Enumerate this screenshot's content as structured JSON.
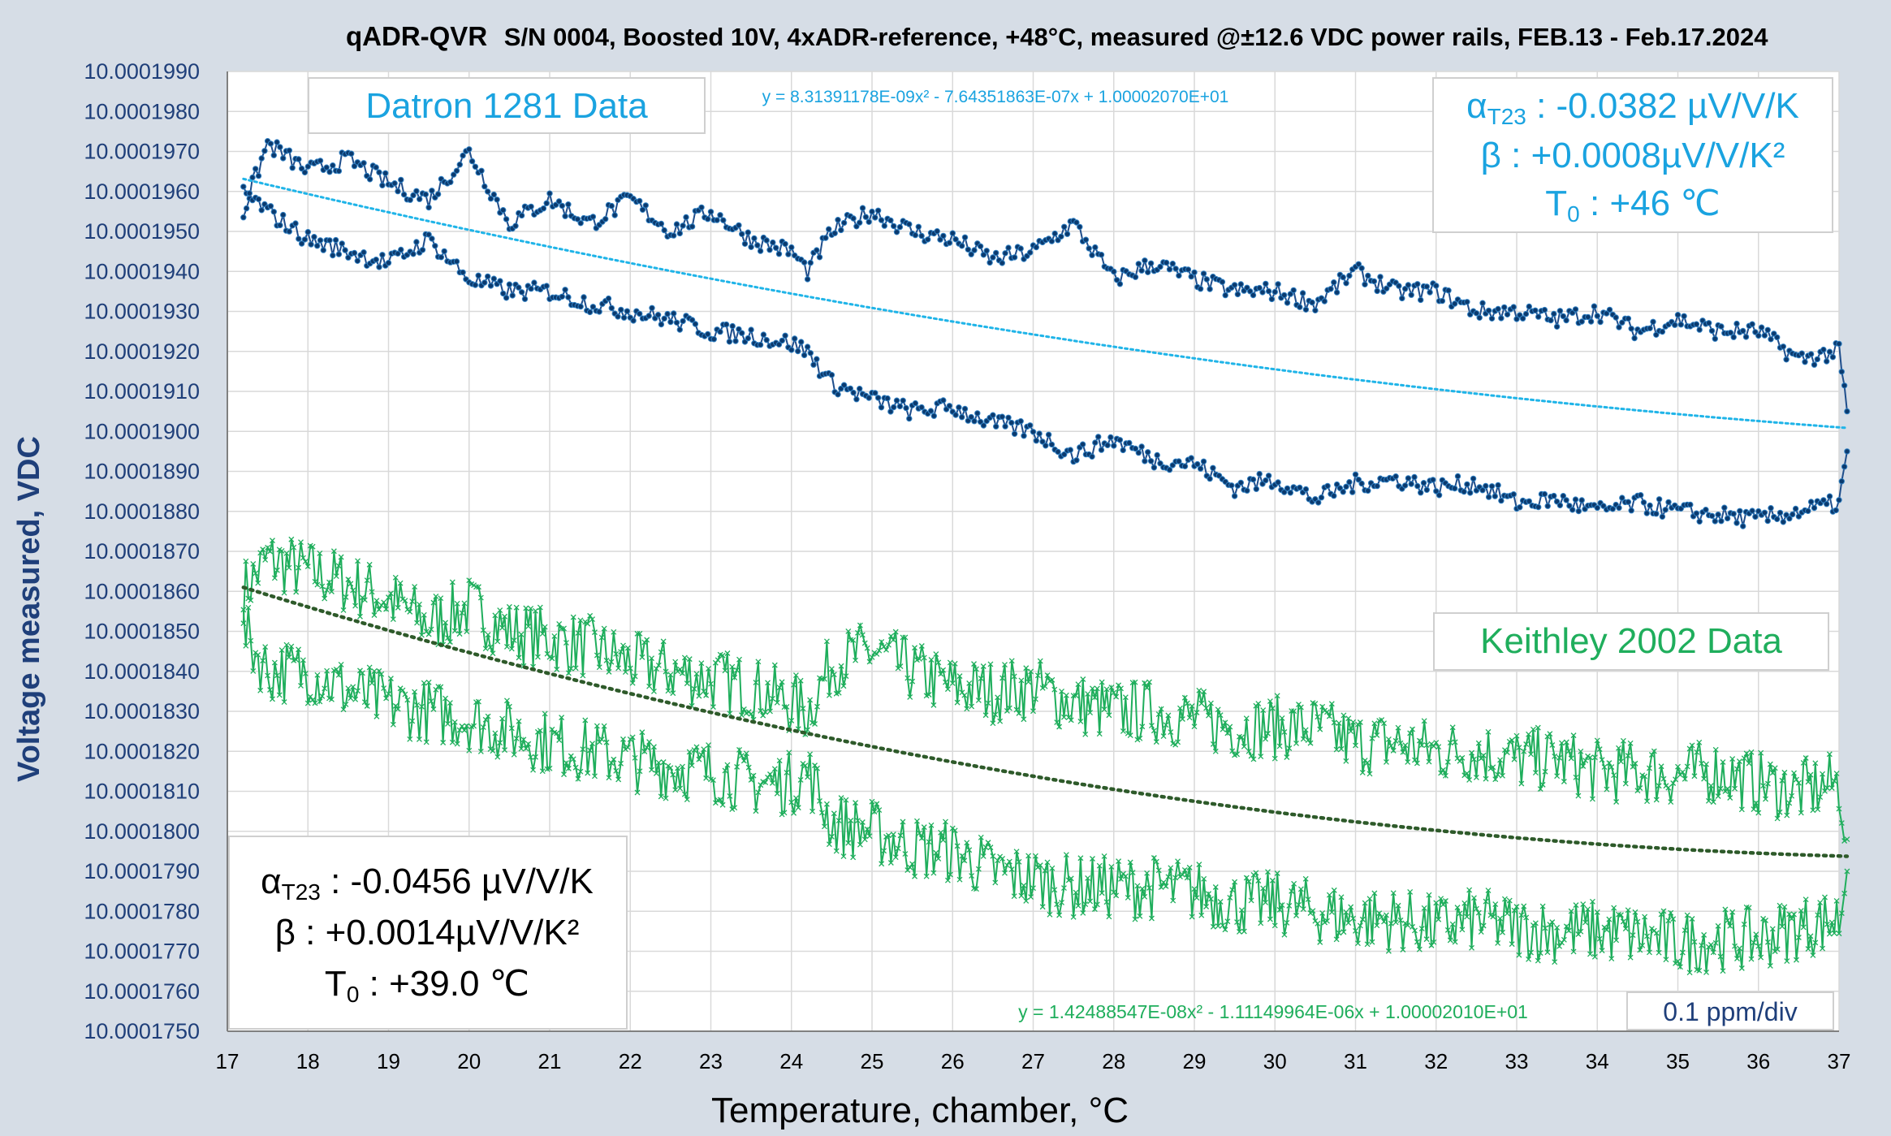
{
  "chart_data": {
    "type": "scatter",
    "title_main": "qADR-QVR",
    "title_rest": "S/N 0004, Boosted 10V, 4xADR-reference, +48°C, measured @±12.6 VDC power rails, FEB.13 - Feb.17.2024",
    "xlabel": "Temperature, chamber, °C",
    "ylabel": "Voltage measured, VDC",
    "xlim": [
      17,
      37
    ],
    "ylim": [
      10.000175,
      10.000199
    ],
    "x_ticks": [
      "17",
      "18",
      "19",
      "20",
      "21",
      "22",
      "23",
      "24",
      "25",
      "26",
      "27",
      "28",
      "29",
      "30",
      "31",
      "32",
      "33",
      "34",
      "35",
      "36",
      "37"
    ],
    "y_ticks": [
      "10.0001750",
      "10.0001760",
      "10.0001770",
      "10.0001780",
      "10.0001790",
      "10.0001800",
      "10.0001810",
      "10.0001820",
      "10.0001830",
      "10.0001840",
      "10.0001850",
      "10.0001860",
      "10.0001870",
      "10.0001880",
      "10.0001890",
      "10.0001900",
      "10.0001910",
      "10.0001920",
      "10.0001930",
      "10.0001940",
      "10.0001950",
      "10.0001960",
      "10.0001970",
      "10.0001980",
      "10.0001990"
    ],
    "grid": true,
    "scale_note": "0.1 ppm/div",
    "colors": {
      "datron": "#1f4e8c",
      "datron_fit": "#1fb4e8",
      "keithley": "#1fae5c",
      "keithley_fit": "#2e5a2a",
      "label_blue": "#1aa3e0",
      "label_green": "#1fae5c",
      "axis_text": "#1f3f7a"
    },
    "series": [
      {
        "name": "Datron 1281 Data",
        "upper_path": [
          [
            17.2,
            10.0001955
          ],
          [
            17.5,
            10.0001972
          ],
          [
            18,
            10.0001965
          ],
          [
            18.5,
            10.0001968
          ],
          [
            19,
            10.0001962
          ],
          [
            19.5,
            10.0001958
          ],
          [
            20,
            10.000197
          ],
          [
            20.5,
            10.0001952
          ],
          [
            21,
            10.0001958
          ],
          [
            21.5,
            10.0001952
          ],
          [
            22,
            10.0001958
          ],
          [
            22.5,
            10.000195
          ],
          [
            23,
            10.0001955
          ],
          [
            23.5,
            10.0001948
          ],
          [
            24,
            10.0001945
          ],
          [
            24.2,
            10.000194
          ],
          [
            24.5,
            10.000195
          ],
          [
            25,
            10.0001955
          ],
          [
            25.5,
            10.000195
          ],
          [
            26,
            10.0001948
          ],
          [
            26.5,
            10.0001943
          ],
          [
            27,
            10.0001945
          ],
          [
            27.5,
            10.0001952
          ],
          [
            28,
            10.0001938
          ],
          [
            28.5,
            10.0001942
          ],
          [
            29,
            10.0001938
          ],
          [
            29.5,
            10.0001935
          ],
          [
            30,
            10.0001935
          ],
          [
            30.5,
            10.0001932
          ],
          [
            31,
            10.000194
          ],
          [
            31.5,
            10.0001935
          ],
          [
            32,
            10.0001935
          ],
          [
            32.5,
            10.000193
          ],
          [
            33,
            10.000193
          ],
          [
            33.5,
            10.0001928
          ],
          [
            34,
            10.000193
          ],
          [
            34.5,
            10.0001925
          ],
          [
            35,
            10.0001928
          ],
          [
            35.5,
            10.0001925
          ],
          [
            36,
            10.0001925
          ],
          [
            36.5,
            10.0001918
          ],
          [
            37,
            10.000192
          ],
          [
            37.1,
            10.0001905
          ]
        ],
        "lower_path": [
          [
            17.2,
            10.000196
          ],
          [
            17.5,
            10.0001955
          ],
          [
            18,
            10.0001948
          ],
          [
            18.5,
            10.0001945
          ],
          [
            19,
            10.0001942
          ],
          [
            19.5,
            10.0001948
          ],
          [
            20,
            10.0001938
          ],
          [
            20.5,
            10.0001935
          ],
          [
            21,
            10.0001935
          ],
          [
            21.5,
            10.0001932
          ],
          [
            22,
            10.000193
          ],
          [
            22.5,
            10.0001928
          ],
          [
            23,
            10.0001925
          ],
          [
            23.5,
            10.0001924
          ],
          [
            24,
            10.0001922
          ],
          [
            24.2,
            10.000192
          ],
          [
            24.5,
            10.0001912
          ],
          [
            25,
            10.0001908
          ],
          [
            25.5,
            10.0001905
          ],
          [
            26,
            10.0001906
          ],
          [
            26.5,
            10.0001902
          ],
          [
            27,
            10.00019
          ],
          [
            27.5,
            10.0001894
          ],
          [
            28,
            10.0001898
          ],
          [
            28.5,
            10.0001893
          ],
          [
            29,
            10.0001892
          ],
          [
            29.5,
            10.0001886
          ],
          [
            30,
            10.0001888
          ],
          [
            30.5,
            10.0001883
          ],
          [
            31,
            10.0001887
          ],
          [
            31.5,
            10.0001888
          ],
          [
            32,
            10.0001886
          ],
          [
            32.5,
            10.0001887
          ],
          [
            33,
            10.0001882
          ],
          [
            33.5,
            10.0001883
          ],
          [
            34,
            10.000188
          ],
          [
            34.5,
            10.0001882
          ],
          [
            35,
            10.000188
          ],
          [
            35.5,
            10.0001879
          ],
          [
            36,
            10.0001878
          ],
          [
            36.5,
            10.000188
          ],
          [
            37,
            10.0001882
          ],
          [
            37.1,
            10.0001895
          ]
        ],
        "fit_equation": "y = 8.31391178E-09x² - 7.64351863E-07x + 1.00002070E+01",
        "fit": {
          "a": 8.31391178e-09,
          "b": -7.64351863e-07,
          "c": 10.000207,
          "x0": 17.2,
          "x1": 37.1
        },
        "alpha_label": "αT23 : -0.0382 µV/V/K",
        "alpha_value": "-0.0382 µV/V/K",
        "beta_value": "+0.0008µV/V/K²",
        "t0_value": "+46 ℃"
      },
      {
        "name": "Keithley 2002 Data",
        "upper_path": [
          [
            17.2,
            10.000186
          ],
          [
            17.5,
            10.0001868
          ],
          [
            18,
            10.0001865
          ],
          [
            18.5,
            10.0001862
          ],
          [
            19,
            10.0001858
          ],
          [
            19.5,
            10.0001852
          ],
          [
            20,
            10.0001856
          ],
          [
            20.5,
            10.000185
          ],
          [
            21,
            10.0001848
          ],
          [
            21.5,
            10.0001846
          ],
          [
            22,
            10.0001842
          ],
          [
            22.5,
            10.000184
          ],
          [
            23,
            10.0001838
          ],
          [
            23.5,
            10.0001836
          ],
          [
            24,
            10.0001832
          ],
          [
            24.2,
            10.000183
          ],
          [
            24.5,
            10.0001842
          ],
          [
            25,
            10.0001845
          ],
          [
            25.5,
            10.000184
          ],
          [
            26,
            10.0001836
          ],
          [
            26.5,
            10.0001835
          ],
          [
            27,
            10.0001836
          ],
          [
            27.5,
            10.0001832
          ],
          [
            28,
            10.000183
          ],
          [
            28.5,
            10.000183
          ],
          [
            29,
            10.0001828
          ],
          [
            29.5,
            10.0001826
          ],
          [
            30,
            10.0001826
          ],
          [
            30.5,
            10.0001826
          ],
          [
            31,
            10.0001822
          ],
          [
            31.5,
            10.0001822
          ],
          [
            32,
            10.000182
          ],
          [
            32.5,
            10.000182
          ],
          [
            33,
            10.0001818
          ],
          [
            33.5,
            10.0001818
          ],
          [
            34,
            10.0001815
          ],
          [
            34.5,
            10.0001815
          ],
          [
            35,
            10.0001814
          ],
          [
            35.5,
            10.0001815
          ],
          [
            36,
            10.0001812
          ],
          [
            36.5,
            10.000181
          ],
          [
            37,
            10.0001812
          ],
          [
            37.1,
            10.0001798
          ]
        ],
        "lower_path": [
          [
            17.2,
            10.000185
          ],
          [
            17.5,
            10.000184
          ],
          [
            18,
            10.000184
          ],
          [
            18.5,
            10.0001835
          ],
          [
            19,
            10.0001832
          ],
          [
            19.5,
            10.000183
          ],
          [
            20,
            10.0001828
          ],
          [
            20.5,
            10.0001825
          ],
          [
            21,
            10.0001822
          ],
          [
            21.5,
            10.000182
          ],
          [
            22,
            10.0001818
          ],
          [
            22.5,
            10.0001816
          ],
          [
            23,
            10.0001815
          ],
          [
            23.5,
            10.0001812
          ],
          [
            24,
            10.0001812
          ],
          [
            24.2,
            10.0001815
          ],
          [
            24.5,
            10.0001802
          ],
          [
            25,
            10.00018
          ],
          [
            25.5,
            10.0001796
          ],
          [
            26,
            10.0001795
          ],
          [
            26.5,
            10.000179
          ],
          [
            27,
            10.0001788
          ],
          [
            27.5,
            10.0001786
          ],
          [
            28,
            10.0001786
          ],
          [
            28.5,
            10.0001786
          ],
          [
            29,
            10.0001785
          ],
          [
            29.5,
            10.0001782
          ],
          [
            30,
            10.0001782
          ],
          [
            30.5,
            10.000178
          ],
          [
            31,
            10.0001778
          ],
          [
            31.5,
            10.0001778
          ],
          [
            32,
            10.0001776
          ],
          [
            32.5,
            10.0001778
          ],
          [
            33,
            10.0001776
          ],
          [
            33.5,
            10.0001775
          ],
          [
            34,
            10.0001775
          ],
          [
            34.5,
            10.0001774
          ],
          [
            35,
            10.0001772
          ],
          [
            35.5,
            10.0001773
          ],
          [
            36,
            10.0001773
          ],
          [
            36.5,
            10.0001776
          ],
          [
            37,
            10.0001778
          ],
          [
            37.1,
            10.000179
          ]
        ],
        "fit_equation": "y = 1.42488547E-08x² - 1.11149964E-06x + 1.00002010E+01",
        "fit": {
          "a": 1.42488547e-08,
          "b": -1.11149964e-06,
          "c": 10.000201,
          "x0": 17.2,
          "x1": 37.1
        },
        "alpha_value": "-0.0456 µV/V/K",
        "beta_value": "+0.0014µV/V/K²",
        "t0_value": "+39.0 ℃"
      }
    ]
  },
  "labels": {
    "datron_box": "Datron 1281 Data",
    "keithley_box": "Keithley 2002 Data",
    "alpha_prefix": "α",
    "alpha_sub": "T23",
    "beta_prefix": "β : ",
    "t0_prefix": "T",
    "t0_sub": "0"
  }
}
